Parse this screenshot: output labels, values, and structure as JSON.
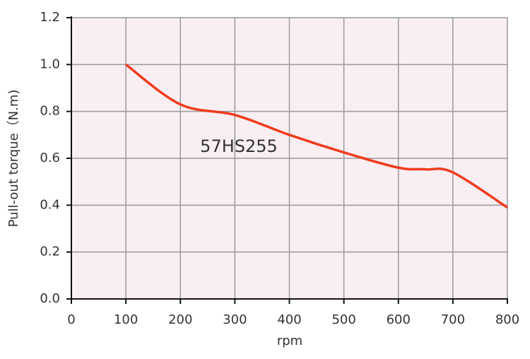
{
  "chart_data": {
    "type": "line",
    "x_label": "rpm",
    "y_label": "Pull-out torque（N.m)",
    "annotation": "57HS255",
    "x": [
      100,
      200,
      300,
      400,
      500,
      600,
      650,
      700,
      800
    ],
    "series": [
      {
        "name": "57HS255",
        "color": "#f03c1e",
        "values": [
          1.0,
          0.83,
          0.785,
          0.7,
          0.625,
          0.56,
          0.553,
          0.54,
          0.39
        ]
      }
    ],
    "xlim": [
      0,
      800
    ],
    "xticks": [
      0,
      100,
      200,
      300,
      400,
      500,
      600,
      700,
      800
    ],
    "ylim": [
      0,
      1.2
    ],
    "yticks": [
      {
        "value": 0,
        "label": "0.0"
      },
      0.2,
      0.4,
      0.6,
      0.8,
      {
        "value": 1,
        "label": "1.0"
      },
      1.2
    ],
    "grid": true
  }
}
